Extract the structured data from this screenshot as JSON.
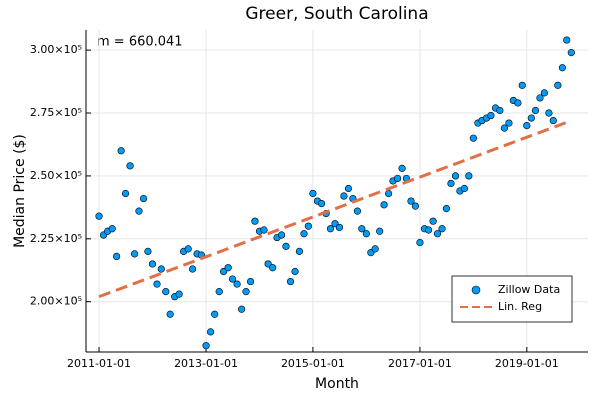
{
  "chart_data": {
    "type": "scatter",
    "title": "Greer, South Carolina",
    "annotation": "m = 660.041",
    "x_label": "Month",
    "y_label": "Median Price ($)",
    "x": [
      "2011-01-01",
      "2011-02-01",
      "2011-03-01",
      "2011-04-01",
      "2011-05-01",
      "2011-06-01",
      "2011-07-01",
      "2011-08-01",
      "2011-09-01",
      "2011-10-01",
      "2011-11-01",
      "2011-12-01",
      "2012-01-01",
      "2012-02-01",
      "2012-03-01",
      "2012-04-01",
      "2012-05-01",
      "2012-06-01",
      "2012-07-01",
      "2012-08-01",
      "2012-09-01",
      "2012-10-01",
      "2012-11-01",
      "2012-12-01",
      "2013-01-01",
      "2013-02-01",
      "2013-03-01",
      "2013-04-01",
      "2013-05-01",
      "2013-06-01",
      "2013-07-01",
      "2013-08-01",
      "2013-09-01",
      "2013-10-01",
      "2013-11-01",
      "2013-12-01",
      "2014-01-01",
      "2014-02-01",
      "2014-03-01",
      "2014-04-01",
      "2014-05-01",
      "2014-06-01",
      "2014-07-01",
      "2014-08-01",
      "2014-09-01",
      "2014-10-01",
      "2014-11-01",
      "2014-12-01",
      "2015-01-01",
      "2015-02-01",
      "2015-03-01",
      "2015-04-01",
      "2015-05-01",
      "2015-06-01",
      "2015-07-01",
      "2015-08-01",
      "2015-09-01",
      "2015-10-01",
      "2015-11-01",
      "2015-12-01",
      "2016-01-01",
      "2016-02-01",
      "2016-03-01",
      "2016-04-01",
      "2016-05-01",
      "2016-06-01",
      "2016-07-01",
      "2016-08-01",
      "2016-09-01",
      "2016-10-01",
      "2016-11-01",
      "2016-12-01",
      "2017-01-01",
      "2017-02-01",
      "2017-03-01",
      "2017-04-01",
      "2017-05-01",
      "2017-06-01",
      "2017-07-01",
      "2017-08-01",
      "2017-09-01",
      "2017-10-01",
      "2017-11-01",
      "2017-12-01",
      "2018-01-01",
      "2018-02-01",
      "2018-03-01",
      "2018-04-01",
      "2018-05-01",
      "2018-06-01",
      "2018-07-01",
      "2018-08-01",
      "2018-09-01",
      "2018-10-01",
      "2018-11-01",
      "2018-12-01",
      "2019-01-01",
      "2019-02-01",
      "2019-03-01",
      "2019-04-01",
      "2019-05-01",
      "2019-06-01",
      "2019-07-01",
      "2019-08-01",
      "2019-09-01",
      "2019-10-01",
      "2019-11-01"
    ],
    "series": [
      {
        "name": "Zillow Data",
        "color": "#009af9",
        "values": [
          234000,
          226500,
          228000,
          229000,
          218000,
          260000,
          243000,
          254000,
          219000,
          236000,
          241000,
          220000,
          215000,
          207000,
          213000,
          204000,
          195000,
          202000,
          203000,
          220000,
          221000,
          213000,
          219000,
          218500,
          182500,
          188000,
          195000,
          204000,
          212000,
          213500,
          209000,
          207000,
          197000,
          204000,
          208000,
          232000,
          228000,
          228500,
          215000,
          213500,
          225500,
          226500,
          222000,
          208000,
          212000,
          220000,
          227000,
          230000,
          243000,
          240000,
          239000,
          235000,
          229000,
          231000,
          229500,
          242000,
          245000,
          241000,
          236000,
          229000,
          227000,
          219500,
          221000,
          228000,
          238500,
          243000,
          248000,
          249000,
          253000,
          249000,
          240000,
          238000,
          223500,
          229000,
          228500,
          232000,
          227000,
          229000,
          237000,
          247000,
          250000,
          244000,
          245000,
          250000,
          265000,
          271000,
          272000,
          273000,
          274000,
          277000,
          276000,
          269000,
          271000,
          280000,
          279000,
          286000,
          270000,
          273000,
          276000,
          281000,
          283000,
          275000,
          272000,
          286000,
          293000,
          304000,
          299000
        ]
      },
      {
        "name": "Lin. Reg",
        "color": "#e26f46",
        "x": [
          "2011-01-01",
          "2019-11-01"
        ],
        "values": [
          202000,
          271960
        ]
      }
    ],
    "xlim": [
      "2010-10-04",
      "2020-02-23"
    ],
    "xticks": [
      "2011-01-01",
      "2013-01-01",
      "2015-01-01",
      "2017-01-01",
      "2019-01-01"
    ],
    "ylim": [
      180000,
      308000
    ],
    "yticks": [
      {
        "value": 200000,
        "label": "2.00×10⁵"
      },
      {
        "value": 225000,
        "label": "2.25×10⁵"
      },
      {
        "value": 250000,
        "label": "2.50×10⁵"
      },
      {
        "value": 275000,
        "label": "2.75×10⁵"
      },
      {
        "value": 300000,
        "label": "3.00×10⁵"
      }
    ],
    "grid": true,
    "legend": "bottom-right"
  }
}
